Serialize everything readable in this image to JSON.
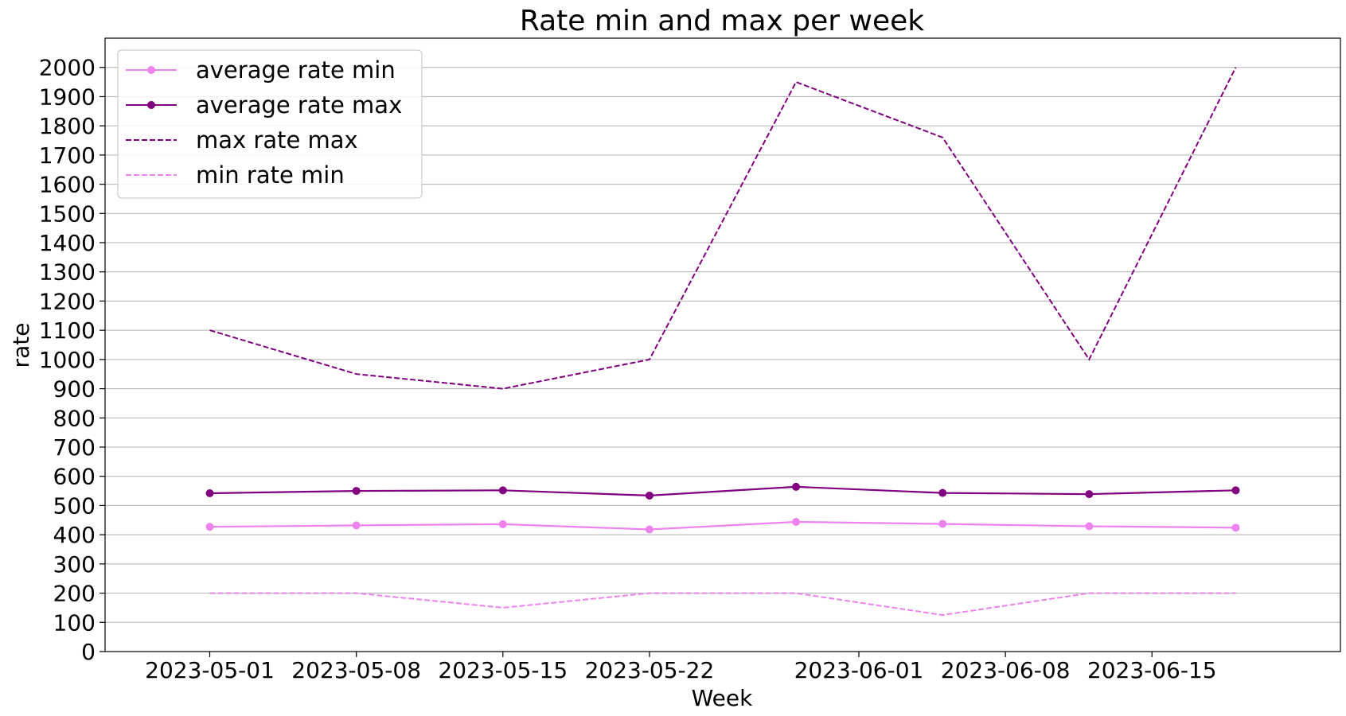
{
  "chart_data": {
    "type": "line",
    "title": "Rate min and max per week",
    "xlabel": "Week",
    "ylabel": "rate",
    "ylim": [
      0,
      2100
    ],
    "yticks": [
      0,
      100,
      200,
      300,
      400,
      500,
      600,
      700,
      800,
      900,
      1000,
      1100,
      1200,
      1300,
      1400,
      1500,
      1600,
      1700,
      1800,
      1900,
      2000
    ],
    "xlim": [
      "2023-04-26",
      "2023-06-24"
    ],
    "xticks": [
      "2023-05-01",
      "2023-05-08",
      "2023-05-15",
      "2023-05-22",
      "2023-06-01",
      "2023-06-08",
      "2023-06-15"
    ],
    "grid": "horizontal",
    "legend_position": "top-left",
    "x": [
      "2023-05-01",
      "2023-05-08",
      "2023-05-15",
      "2023-05-22",
      "2023-05-29",
      "2023-06-05",
      "2023-06-12",
      "2023-06-19"
    ],
    "series": [
      {
        "name": "average rate min",
        "color": "#ee82ee",
        "style": "solid",
        "marker": "circle",
        "values": [
          427,
          432,
          436,
          418,
          444,
          437,
          429,
          424
        ]
      },
      {
        "name": "average rate max",
        "color": "#800080",
        "style": "solid",
        "marker": "circle",
        "values": [
          542,
          550,
          552,
          534,
          564,
          543,
          539,
          552
        ]
      },
      {
        "name": "max rate max",
        "color": "#800080",
        "style": "dashed",
        "marker": "none",
        "values": [
          1100,
          950,
          900,
          1000,
          1950,
          1760,
          1000,
          2000
        ]
      },
      {
        "name": "min rate min",
        "color": "#ee82ee",
        "style": "dashed",
        "marker": "none",
        "values": [
          200,
          200,
          150,
          200,
          200,
          125,
          200,
          200
        ]
      }
    ]
  }
}
